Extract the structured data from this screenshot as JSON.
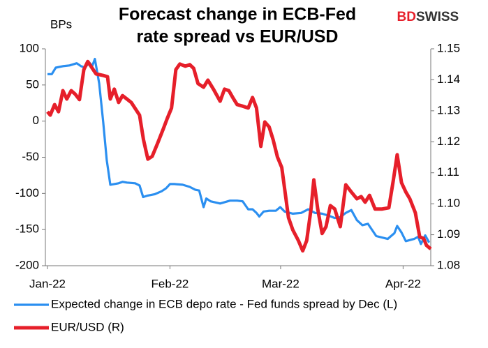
{
  "chart_data": {
    "type": "line",
    "title": [
      "Forecast change in ECB-Fed",
      "rate spread vs EUR/USD"
    ],
    "logo": [
      "BD",
      "SWISS"
    ],
    "ylabel": "BPs",
    "xlim": [
      0,
      97
    ],
    "xticks": [
      {
        "value": 0,
        "label": "Jan-22"
      },
      {
        "value": 31,
        "label": "Feb-22"
      },
      {
        "value": 59,
        "label": "Mar-22"
      },
      {
        "value": 90,
        "label": "Apr-22"
      }
    ],
    "ylim": [
      -200,
      100
    ],
    "yticks": [
      100,
      50,
      0,
      -50,
      -100,
      -150,
      -200
    ],
    "y2lim": [
      1.08,
      1.15
    ],
    "y2ticks": [
      1.15,
      1.14,
      1.13,
      1.12,
      1.11,
      {
        "value": 1.1,
        "label": "1.10"
      },
      1.09,
      1.08
    ],
    "grid": false,
    "legend": "bottom",
    "series": [
      {
        "name": "Expected change in ECB depo rate - Fed funds spread by Dec (L)",
        "color": "#2b8ff0",
        "axis": "y",
        "x": [
          0,
          1.1,
          2.1,
          3.9,
          5.6,
          7.4,
          8.5,
          9.5,
          10.6,
          11.3,
          12,
          13.1,
          14.1,
          15,
          15.9,
          16.9,
          18,
          19,
          20.1,
          22.2,
          23.3,
          24.2,
          25.4,
          27.2,
          28.9,
          30,
          31,
          32.1,
          34.2,
          36,
          37.4,
          38.4,
          39.5,
          40.2,
          41.3,
          43.7,
          46.2,
          48,
          49.4,
          50.8,
          51.9,
          52.9,
          53.6,
          54.7,
          56.1,
          57.8,
          58.9,
          60,
          62.1,
          64.2,
          66,
          67.7,
          69.5,
          71.3,
          72.7,
          74.1,
          75.5,
          76.9,
          78.3,
          79.7,
          81.1,
          83.2,
          86.1,
          87.8,
          88.5,
          89.6,
          90.7,
          92.8,
          93.8,
          94.5,
          95.6,
          96.6
        ],
        "values": [
          65,
          65,
          74,
          76,
          77,
          80,
          76,
          74,
          81,
          76,
          86,
          52,
          -1,
          -54,
          -88,
          -87,
          -86,
          -84,
          -85,
          -86,
          -89,
          -105,
          -103,
          -101,
          -97,
          -93,
          -87,
          -87,
          -88,
          -91,
          -95,
          -96,
          -119,
          -107,
          -111,
          -114,
          -110,
          -110,
          -111,
          -122,
          -122,
          -127,
          -132,
          -125,
          -124,
          -124,
          -119,
          -125,
          -128,
          -127,
          -122,
          -127,
          -128,
          -131,
          -134,
          -133,
          -127,
          -123,
          -137,
          -144,
          -142,
          -159,
          -163,
          -155,
          -145,
          -154,
          -166,
          -163,
          -160,
          -170,
          -158,
          -168
        ]
      },
      {
        "name": "EUR/USD (R)",
        "color": "#e61f2a",
        "axis": "y2",
        "x": [
          0,
          0.7,
          1.8,
          2.8,
          3.9,
          4.9,
          6,
          7,
          8.1,
          9.2,
          10.2,
          12.3,
          14.1,
          15.2,
          15.9,
          16.9,
          18,
          19,
          20.1,
          21.2,
          23.3,
          24.3,
          25.4,
          26.5,
          27.9,
          29.3,
          30.3,
          31.4,
          32.5,
          33.5,
          34.9,
          36,
          37,
          38.1,
          39.5,
          40.6,
          42,
          43.7,
          44.8,
          45.9,
          46.9,
          48,
          49.4,
          50.8,
          51.9,
          52.9,
          54,
          55,
          56.1,
          57.1,
          58.2,
          59.3,
          60,
          61,
          62.1,
          63.5,
          64.6,
          65.6,
          66.7,
          67.4,
          68.4,
          69.5,
          70.5,
          71.6,
          72.7,
          74.1,
          75.5,
          76.9,
          78.3,
          79.4,
          80.4,
          81.5,
          82.9,
          84.7,
          86.4,
          87.5,
          88.5,
          89.6,
          90.7,
          91.7,
          93.1,
          94.2,
          95.2,
          95.9,
          97
        ],
        "values": [
          1.1297,
          1.1286,
          1.132,
          1.1297,
          1.1365,
          1.1338,
          1.1365,
          1.1354,
          1.1336,
          1.1433,
          1.1459,
          1.1419,
          1.1414,
          1.141,
          1.1338,
          1.137,
          1.1327,
          1.1349,
          1.1338,
          1.1327,
          1.1286,
          1.1207,
          1.1144,
          1.1153,
          1.1196,
          1.1241,
          1.1275,
          1.1309,
          1.1433,
          1.1451,
          1.1444,
          1.1449,
          1.1437,
          1.1388,
          1.1376,
          1.1399,
          1.137,
          1.1331,
          1.137,
          1.1365,
          1.1343,
          1.132,
          1.1315,
          1.1309,
          1.1343,
          1.1309,
          1.1185,
          1.1264,
          1.1248,
          1.1207,
          1.1151,
          1.1117,
          1.105,
          1.0955,
          1.0915,
          1.0881,
          1.0848,
          1.0881,
          1.0983,
          1.1077,
          1.0983,
          1.0904,
          1.0926,
          1.0994,
          1.0983,
          1.0926,
          1.1061,
          1.1038,
          1.1016,
          1.1023,
          1.1005,
          1.1027,
          1.0983,
          1.0983,
          1.0987,
          1.1073,
          1.1158,
          1.1068,
          1.1038,
          1.1016,
          1.0971,
          1.0893,
          1.0888,
          1.0866,
          1.0854
        ]
      }
    ]
  }
}
